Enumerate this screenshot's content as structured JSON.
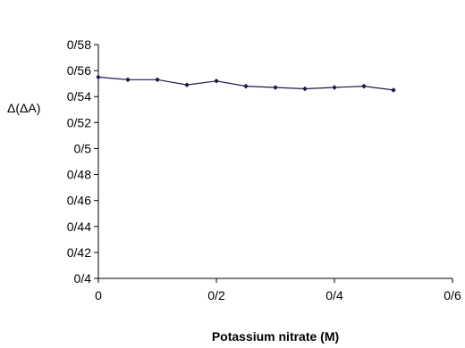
{
  "chart_data": {
    "type": "line",
    "title": "",
    "xlabel": "Potassium nitrate (M)",
    "ylabel": "Δ(ΔA)",
    "xlim": [
      0,
      0.6
    ],
    "ylim": [
      0.4,
      0.58
    ],
    "x_ticks": [
      0,
      0.2,
      0.4,
      0.6
    ],
    "x_tick_labels": [
      "0",
      "0/2",
      "0/4",
      "0/6"
    ],
    "y_ticks": [
      0.4,
      0.42,
      0.44,
      0.46,
      0.48,
      0.5,
      0.52,
      0.54,
      0.56,
      0.58
    ],
    "y_tick_labels": [
      "0/4",
      "0/42",
      "0/44",
      "0/46",
      "0/48",
      "0/5",
      "0/52",
      "0/54",
      "0/56",
      "0/58"
    ],
    "grid": false,
    "legend": "none",
    "series": [
      {
        "x": [
          0,
          0.05,
          0.1,
          0.15,
          0.2,
          0.25,
          0.3,
          0.35,
          0.4,
          0.45,
          0.5
        ],
        "y": [
          0.555,
          0.553,
          0.553,
          0.549,
          0.552,
          0.548,
          0.547,
          0.546,
          0.547,
          0.548,
          0.545
        ],
        "color": "#1a1a4a"
      }
    ]
  }
}
